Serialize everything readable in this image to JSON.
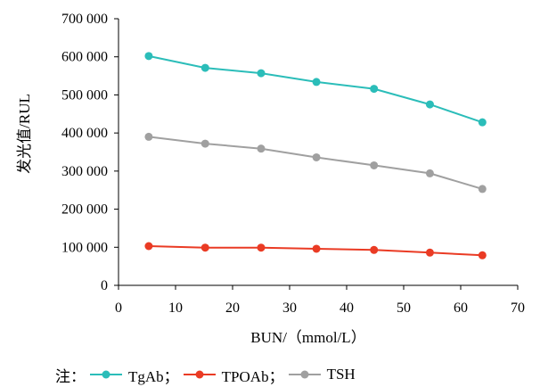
{
  "chart_data": {
    "type": "line",
    "xlabel": "BUN/（mmol/L）",
    "ylabel": "发光值/RUL",
    "xlim": [
      0,
      70
    ],
    "ylim": [
      0,
      700000
    ],
    "x_ticks": [
      "0",
      "10",
      "20",
      "30",
      "40",
      "50",
      "60",
      "70"
    ],
    "y_ticks": [
      "0",
      "100 000",
      "200 000",
      "300 000",
      "400 000",
      "500 000",
      "600 000",
      "700 000"
    ],
    "x_tick_values": [
      0,
      10,
      20,
      30,
      40,
      50,
      60,
      70
    ],
    "y_tick_values": [
      0,
      100000,
      200000,
      300000,
      400000,
      500000,
      600000,
      700000
    ],
    "grid": false,
    "legend_position": "bottom",
    "series": [
      {
        "name": "TgAb",
        "color": "#2bbdb9",
        "x": [
          5.3,
          15.2,
          25.0,
          34.7,
          44.8,
          54.6,
          63.8
        ],
        "y": [
          602000,
          571000,
          557000,
          534000,
          516000,
          475000,
          428000
        ]
      },
      {
        "name": "TPOAb",
        "color": "#ea3b24",
        "x": [
          5.3,
          15.2,
          25.0,
          34.7,
          44.8,
          54.6,
          63.8
        ],
        "y": [
          103000,
          99000,
          99000,
          96000,
          93000,
          86000,
          79000
        ]
      },
      {
        "name": "TSH",
        "color": "#a0a0a0",
        "x": [
          5.3,
          15.2,
          25.0,
          34.7,
          44.8,
          54.6,
          63.8
        ],
        "y": [
          390000,
          372000,
          359000,
          336000,
          315000,
          294000,
          253000
        ]
      }
    ]
  },
  "legend": {
    "prefix": "注：",
    "items": [
      {
        "label": "TgAb；",
        "color": "#2bbdb9"
      },
      {
        "label": "TPOAb；",
        "color": "#ea3b24"
      },
      {
        "label": "TSH",
        "color": "#a0a0a0"
      }
    ]
  }
}
